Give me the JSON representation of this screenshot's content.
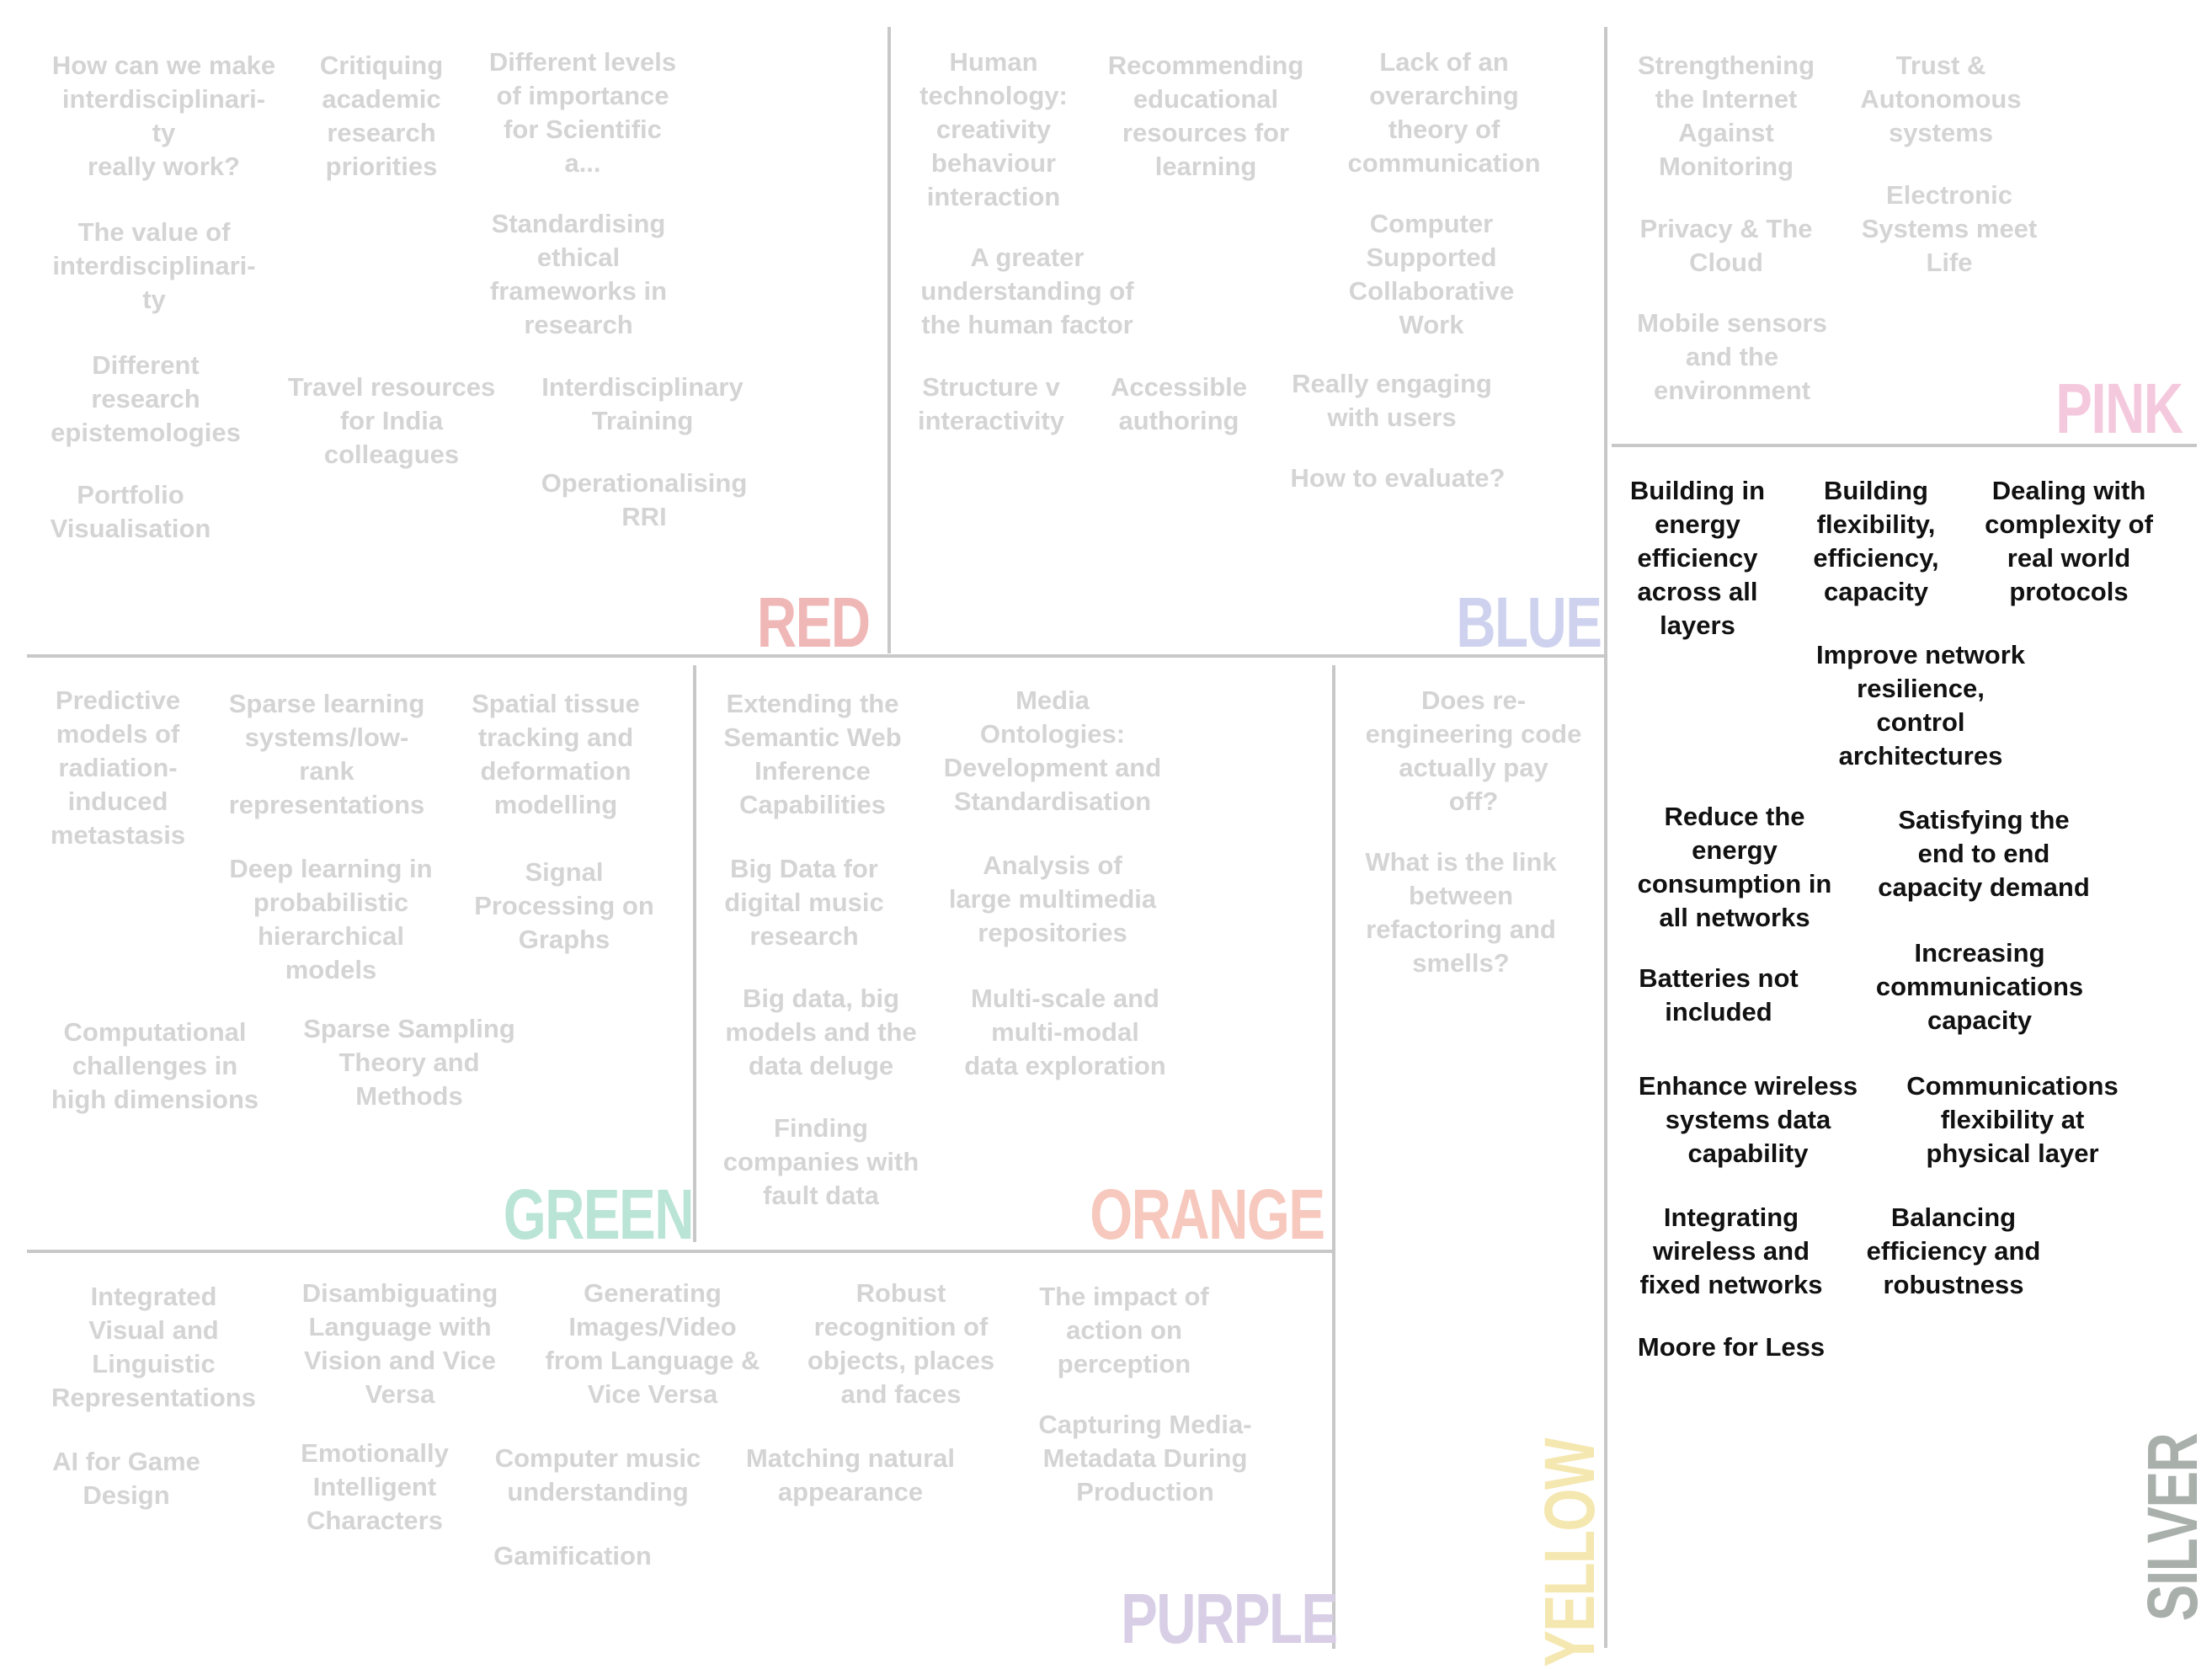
{
  "colors": {
    "red": "#f0b7b7",
    "blue": "#cfd2ee",
    "pink": "#f5c9dd",
    "green": "#b9e4d6",
    "orange": "#f7c8bd",
    "yellow": "#f5e7b0",
    "purple": "#d8cfe6",
    "silver": "#a9b0ac",
    "faded_text": "#d4d4d4",
    "active_text": "#111111"
  },
  "groups": {
    "red": {
      "label": "RED",
      "items": [
        "How can we make\ninterdisciplinari-\nty\nreally work?",
        "Critiquing\nacademic\nresearch\npriorities",
        "Different levels\nof importance\nfor Scientific\na...",
        "The value of\ninterdisciplinari-\nty",
        "Standardising\nethical\nframeworks in\nresearch",
        "Different\nresearch\nepistemologies",
        "Travel resources\nfor India\ncolleagues",
        "Interdisciplinary\nTraining",
        "Portfolio\nVisualisation",
        "Operationalising\nRRI"
      ]
    },
    "blue": {
      "label": "BLUE",
      "items": [
        "Human\ntechnology:\ncreativity\nbehaviour\ninteraction",
        "Recommending\neducational\nresources for\nlearning",
        "Lack of an\noverarching\ntheory of\ncommunication",
        "A greater\nunderstanding of\nthe human factor",
        "Computer\nSupported\nCollaborative\nWork",
        "Structure v\ninteractivity",
        "Accessible\nauthoring",
        "Really engaging\nwith users",
        "How to evaluate?"
      ]
    },
    "pink": {
      "label": "PINK",
      "items": [
        "Strengthening\nthe Internet\nAgainst\nMonitoring",
        "Trust &\nAutonomous\nsystems",
        "Electronic\nSystems meet\nLife",
        "Privacy & The\nCloud",
        "Mobile sensors\nand the\nenvironment"
      ]
    },
    "green": {
      "label": "GREEN",
      "items": [
        "Predictive\nmodels of\nradiation-\ninduced\nmetastasis",
        "Sparse learning\nsystems/low-\nrank\nrepresentations",
        "Spatial tissue\ntracking and\ndeformation\nmodelling",
        "Deep learning in\nprobabilistic\nhierarchical\nmodels",
        "Signal\nProcessing on\nGraphs",
        "Computational\nchallenges in\nhigh dimensions",
        "Sparse Sampling\nTheory and\nMethods"
      ]
    },
    "orange": {
      "label": "ORANGE",
      "items": [
        "Extending the\nSemantic Web\nInference\nCapabilities",
        "Media\nOntologies:\nDevelopment and\nStandardisation",
        "Big Data for\ndigital music\nresearch",
        "Analysis of\nlarge multimedia\nrepositories",
        "Big data, big\nmodels and the\ndata deluge",
        "Multi-scale and\nmulti-modal\ndata exploration",
        "Finding\ncompanies with\nfault data"
      ]
    },
    "yellow": {
      "label": "YELLOW",
      "items": [
        "Does re-\nengineering code\nactually pay\noff?",
        "What is the link\nbetween\nrefactoring and\nsmells?"
      ]
    },
    "purple": {
      "label": "PURPLE",
      "items": [
        "Integrated\nVisual and\nLinguistic\nRepresentations",
        "Disambiguating\nLanguage with\nVision and Vice\nVersa",
        "Generating\nImages/Video\nfrom Language &\nVice Versa",
        "Robust\nrecognition of\nobjects, places\nand faces",
        "The impact of\naction on\nperception",
        "AI for Game\nDesign",
        "Emotionally\nIntelligent\nCharacters",
        "Computer music\nunderstanding",
        "Matching natural\nappearance",
        "Capturing Media-\nMetadata During\nProduction",
        "Gamification"
      ]
    },
    "silver": {
      "label": "SILVER",
      "items": [
        "Building in\nenergy\nefficiency\nacross all\nlayers",
        "Building\nflexibility,\nefficiency,\ncapacity",
        "Dealing with\ncomplexity of\nreal world\nprotocols",
        "Improve network\nresilience,\ncontrol\narchitectures",
        "Reduce the\nenergy\nconsumption in\nall networks",
        "Satisfying the\nend to end\ncapacity demand",
        "Batteries not\nincluded",
        "Increasing\ncommunications\ncapacity",
        "Enhance wireless\nsystems data\ncapability",
        "Communications\nflexibility at\nphysical layer",
        "Integrating\nwireless and\nfixed networks",
        "Balancing\nefficiency and\nrobustness",
        "Moore for Less"
      ]
    }
  }
}
